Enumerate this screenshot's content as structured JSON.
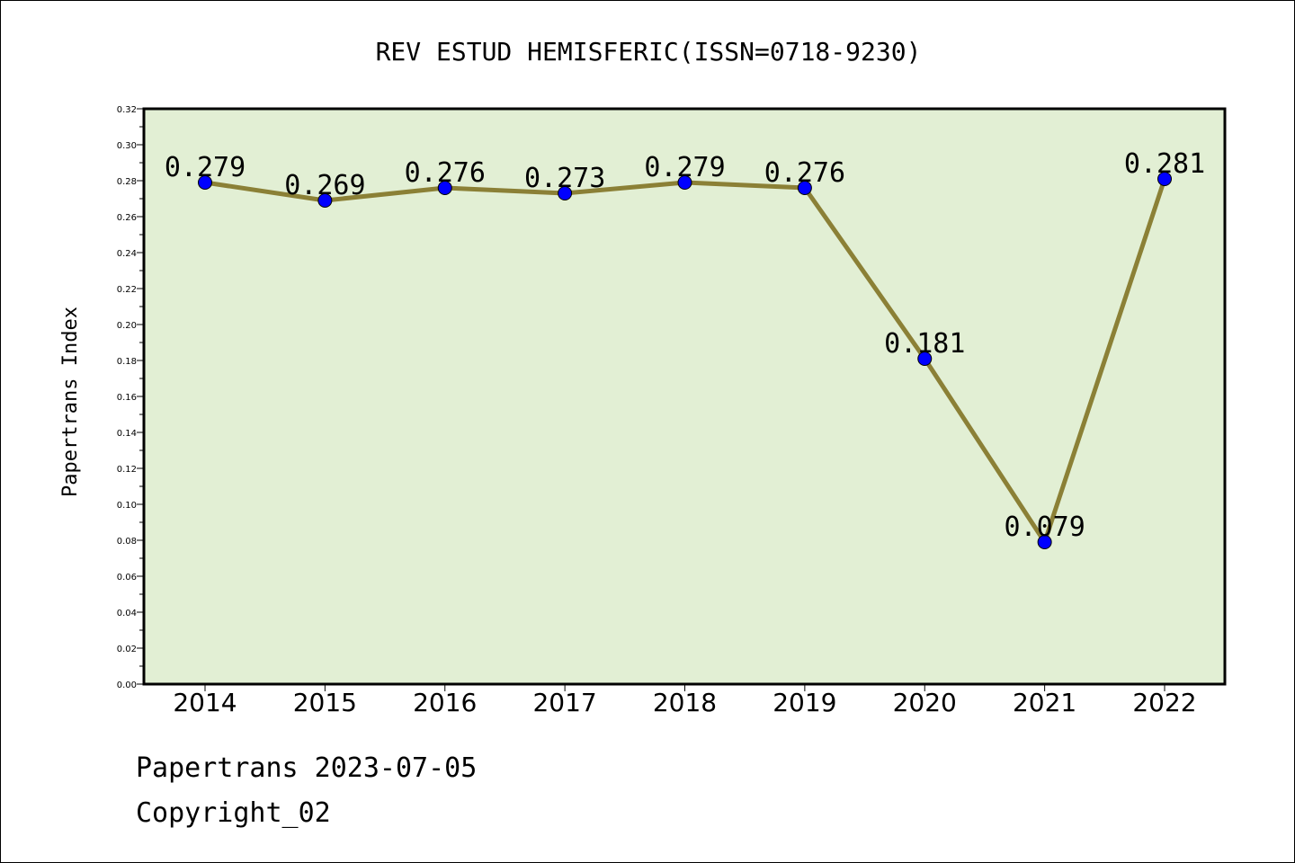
{
  "chart_data": {
    "type": "line",
    "title": "REV ESTUD HEMISFERIC(ISSN=0718-9230)",
    "xlabel": "",
    "ylabel": "Papertrans Index",
    "categories": [
      "2014",
      "2015",
      "2016",
      "2017",
      "2018",
      "2019",
      "2020",
      "2021",
      "2022"
    ],
    "series": [
      {
        "values": [
          0.279,
          0.269,
          0.276,
          0.273,
          0.279,
          0.276,
          0.181,
          0.079,
          0.281
        ],
        "data_labels": [
          "0.279",
          "0.269",
          "0.276",
          "0.273",
          "0.279",
          "0.276",
          "0.181",
          "0.079",
          "0.281"
        ]
      }
    ],
    "ylim": [
      0,
      0.32
    ],
    "yticks": [
      "0.00",
      "0.02",
      "0.04",
      "0.06",
      "0.08",
      "0.10",
      "0.12",
      "0.14",
      "0.16",
      "0.18",
      "0.20",
      "0.22",
      "0.24",
      "0.26",
      "0.28",
      "0.30",
      "0.32"
    ],
    "grid": false,
    "colors": {
      "plot_background": "#e2efd4",
      "line": "#8b8036",
      "marker": "#0000ff"
    }
  },
  "footer": {
    "date_line": "Papertrans 2023-07-05",
    "copyright": "Copyright_02"
  }
}
